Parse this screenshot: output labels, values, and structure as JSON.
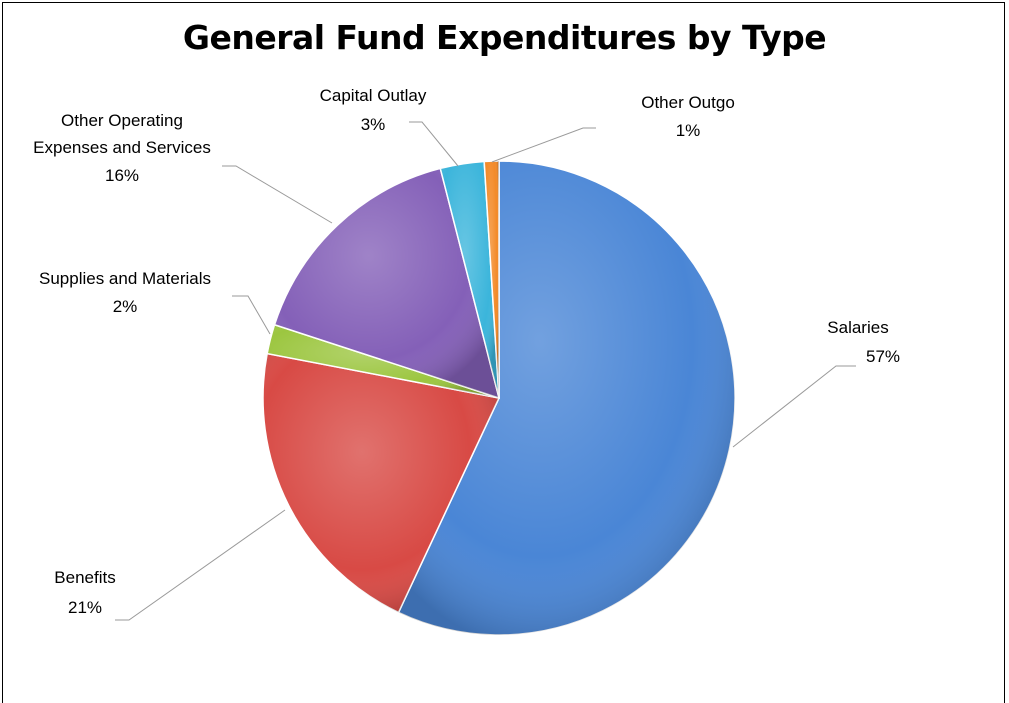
{
  "chart_data": {
    "type": "pie",
    "title": "General Fund Expenditures  by Type",
    "slices": [
      {
        "name": "Salaries",
        "value": 57,
        "label": "57%",
        "color": "#4A86D6"
      },
      {
        "name": "Benefits",
        "value": 21,
        "label": "21%",
        "color": "#D84A45"
      },
      {
        "name": "Supplies and Materials",
        "value": 2,
        "label": "2%",
        "color": "#9CC640"
      },
      {
        "name": "Other Operating Expenses and Services",
        "value": 16,
        "label": "16%",
        "color": "#8460B8"
      },
      {
        "name": "Capital Outlay",
        "value": 3,
        "label": "3%",
        "color": "#3BB5DB"
      },
      {
        "name": "Other Outgo",
        "value": 1,
        "label": "1%",
        "color": "#F38A28"
      }
    ],
    "legend": "none (labels on leader lines)"
  }
}
